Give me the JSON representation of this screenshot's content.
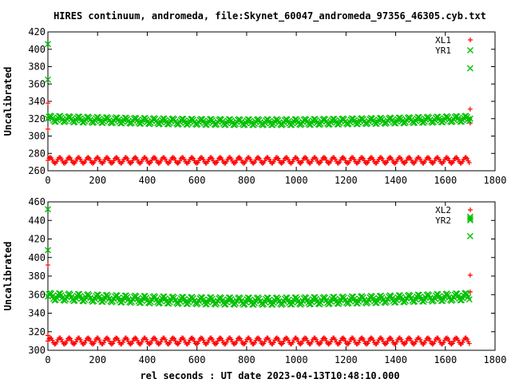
{
  "chart_data": {
    "type": "scatter",
    "title": "HIRES continuum, andromeda, file:Skynet_60047_andromeda_97356_46305.cyb.txt",
    "xlabel": "rel seconds : UT date 2023-04-13T10:48:10.000",
    "panels": [
      {
        "ylabel": "Uncalibrated",
        "xlim": [
          0,
          1800
        ],
        "ylim": [
          260,
          420
        ],
        "xticks": [
          "0",
          "200",
          "400",
          "600",
          "800",
          "1000",
          "1200",
          "1400",
          "1600",
          "1800"
        ],
        "yticks": [
          "260",
          "280",
          "300",
          "320",
          "340",
          "360",
          "380",
          "400",
          "420"
        ],
        "series": [
          {
            "name": "XL1",
            "marker": "plus",
            "color": "#ff0000",
            "base": 272,
            "amplitude": 3.5,
            "period": 38,
            "x_start": 0,
            "x_end": 1700,
            "x_step": 4.5,
            "outliers": [
              [
                0,
                308
              ],
              [
                0,
                338
              ],
              [
                1700,
                331
              ],
              [
                1700,
                315
              ]
            ]
          },
          {
            "name": "YR1",
            "marker": "cross",
            "color": "#00c000",
            "base": 320,
            "amplitude": 3.5,
            "period": 38,
            "x_start": 0,
            "x_end": 1700,
            "x_step": 4.5,
            "dip": 4,
            "outliers": [
              [
                0,
                406
              ],
              [
                0,
                365
              ],
              [
                1700,
                378
              ],
              [
                1700,
                320
              ]
            ]
          }
        ]
      },
      {
        "ylabel": "Uncalibrated",
        "xlim": [
          0,
          1800
        ],
        "ylim": [
          300,
          460
        ],
        "xticks": [
          "0",
          "200",
          "400",
          "600",
          "800",
          "1000",
          "1200",
          "1400",
          "1600",
          "1800"
        ],
        "yticks": [
          "300",
          "320",
          "340",
          "360",
          "380",
          "400",
          "420",
          "440",
          "460"
        ],
        "series": [
          {
            "name": "XL2",
            "marker": "plus",
            "color": "#ff0000",
            "base": 310,
            "amplitude": 3.5,
            "period": 38,
            "x_start": 0,
            "x_end": 1700,
            "x_step": 4.5,
            "outliers": [
              [
                0,
                392
              ],
              [
                0,
                316
              ],
              [
                1700,
                381
              ],
              [
                1700,
                363
              ]
            ]
          },
          {
            "name": "YR2",
            "marker": "cross",
            "color": "#00c000",
            "base": 358,
            "amplitude": 4,
            "period": 38,
            "x_start": 0,
            "x_end": 1700,
            "x_step": 4.5,
            "dip": 5,
            "outliers": [
              [
                0,
                452
              ],
              [
                0,
                408
              ],
              [
                1700,
                444
              ],
              [
                1700,
                423
              ],
              [
                1700,
                442
              ]
            ]
          }
        ]
      }
    ]
  }
}
